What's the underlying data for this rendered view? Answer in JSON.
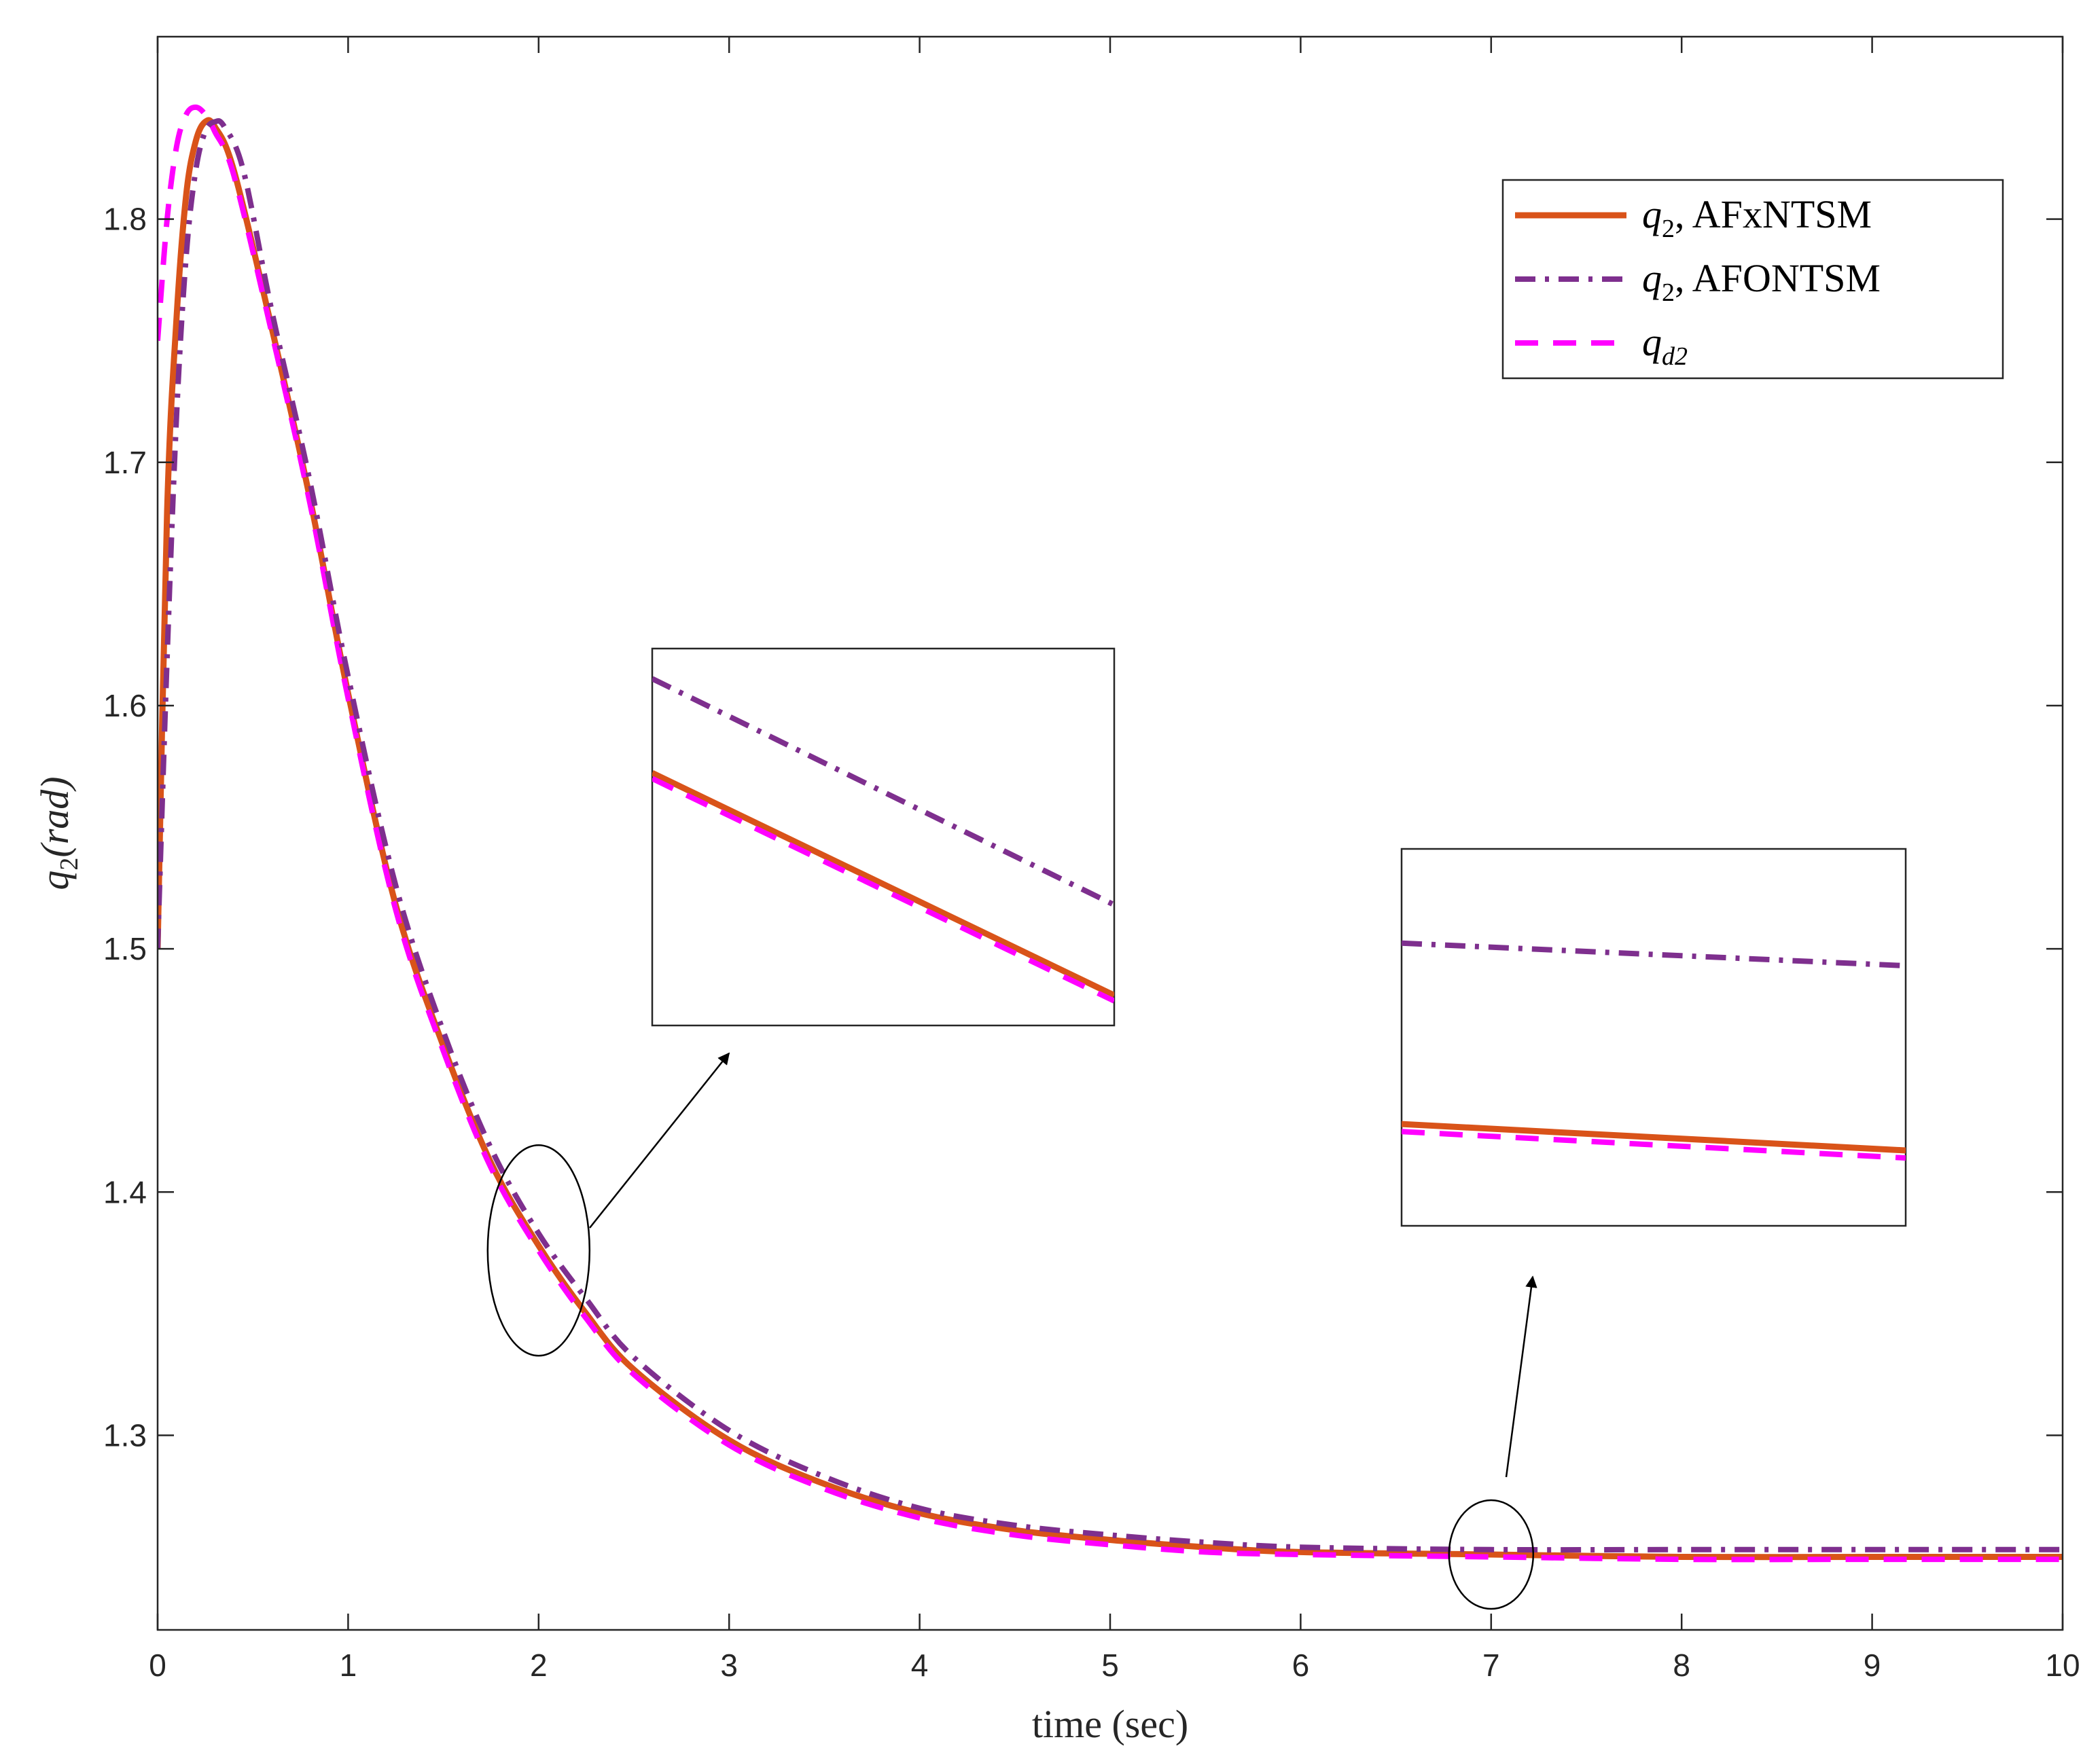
{
  "chart_data": {
    "type": "line",
    "xlabel": "time (sec)",
    "ylabel": {
      "var": "q",
      "sub": "2",
      "unit": "(rad)"
    },
    "xlim": [
      0,
      10
    ],
    "ylim": [
      1.22,
      1.875
    ],
    "xticks": [
      0,
      1,
      2,
      3,
      4,
      5,
      6,
      7,
      8,
      9,
      10
    ],
    "yticks": [
      1.3,
      1.4,
      1.5,
      1.6,
      1.7,
      1.8
    ],
    "ytick_labels": [
      "1.3",
      "1.4",
      "1.5",
      "1.6",
      "1.7",
      "1.8"
    ],
    "grid": false,
    "legend_position": "top-right",
    "series": [
      {
        "key": "afxntsm",
        "name": "q2, AFxNTSM",
        "legend": {
          "var": "q",
          "sub": "2",
          "rest": ", AFxNTSM"
        },
        "color": "#D95319",
        "style": "solid",
        "x": [
          0,
          0.05,
          0.1,
          0.15,
          0.2,
          0.25,
          0.3,
          0.4,
          0.6,
          0.8,
          1.0,
          1.25,
          1.5,
          1.75,
          2.0,
          2.25,
          2.5,
          3.0,
          3.5,
          4.0,
          4.5,
          5.0,
          5.5,
          6.0,
          7.0,
          8.0,
          9.0,
          10.0
        ],
        "y": [
          1.5,
          1.68,
          1.76,
          1.81,
          1.832,
          1.84,
          1.838,
          1.82,
          1.755,
          1.685,
          1.605,
          1.518,
          1.46,
          1.412,
          1.378,
          1.35,
          1.327,
          1.298,
          1.28,
          1.268,
          1.261,
          1.257,
          1.254,
          1.252,
          1.251,
          1.25,
          1.25,
          1.25
        ]
      },
      {
        "key": "afontsm",
        "name": "q2, AFONTSM",
        "legend": {
          "var": "q",
          "sub": "2",
          "rest": ", AFONTSM"
        },
        "color": "#7E2F8E",
        "style": "dashdot",
        "x": [
          0,
          0.05,
          0.1,
          0.15,
          0.2,
          0.25,
          0.3,
          0.35,
          0.45,
          0.6,
          0.8,
          1.0,
          1.25,
          1.5,
          1.75,
          2.0,
          2.25,
          2.5,
          3.0,
          3.5,
          4.0,
          4.5,
          5.0,
          5.5,
          6.0,
          7.0,
          8.0,
          9.0,
          10.0
        ],
        "y": [
          1.5,
          1.62,
          1.72,
          1.785,
          1.82,
          1.836,
          1.84,
          1.838,
          1.82,
          1.762,
          1.692,
          1.612,
          1.526,
          1.466,
          1.418,
          1.383,
          1.356,
          1.332,
          1.302,
          1.283,
          1.27,
          1.263,
          1.259,
          1.256,
          1.254,
          1.253,
          1.253,
          1.253,
          1.253
        ]
      },
      {
        "key": "qd2",
        "name": "qd2",
        "legend": {
          "var": "q",
          "sub": "d2",
          "rest": ""
        },
        "color": "#FF00FF",
        "style": "dashed",
        "x": [
          0,
          0.05,
          0.1,
          0.15,
          0.2,
          0.25,
          0.3,
          0.4,
          0.6,
          0.8,
          1.0,
          1.25,
          1.5,
          1.75,
          2.0,
          2.25,
          2.5,
          3.0,
          3.5,
          4.0,
          4.5,
          5.0,
          5.5,
          6.0,
          7.0,
          8.0,
          9.0,
          10.0
        ],
        "y": [
          1.75,
          1.8,
          1.83,
          1.843,
          1.846,
          1.843,
          1.836,
          1.818,
          1.753,
          1.683,
          1.603,
          1.516,
          1.458,
          1.41,
          1.376,
          1.348,
          1.325,
          1.296,
          1.278,
          1.266,
          1.259,
          1.255,
          1.252,
          1.251,
          1.25,
          1.249,
          1.249,
          1.249
        ]
      }
    ],
    "annotations": [
      {
        "type": "zoom-inset",
        "target_x": 2.0,
        "target_y": 1.376,
        "lines": [
          {
            "series": "afontsm",
            "y_start": 0.08,
            "y_end": 0.68
          },
          {
            "series": "afxntsm",
            "y_start": 0.33,
            "y_end": 0.92
          },
          {
            "series": "qd2",
            "y_start": 0.345,
            "y_end": 0.935
          }
        ]
      },
      {
        "type": "zoom-inset",
        "target_x": 7.0,
        "target_y": 1.251,
        "lines": [
          {
            "series": "afontsm",
            "y_start": 0.25,
            "y_end": 0.31
          },
          {
            "series": "afxntsm",
            "y_start": 0.73,
            "y_end": 0.8
          },
          {
            "series": "qd2",
            "y_start": 0.75,
            "y_end": 0.82
          }
        ]
      }
    ]
  }
}
